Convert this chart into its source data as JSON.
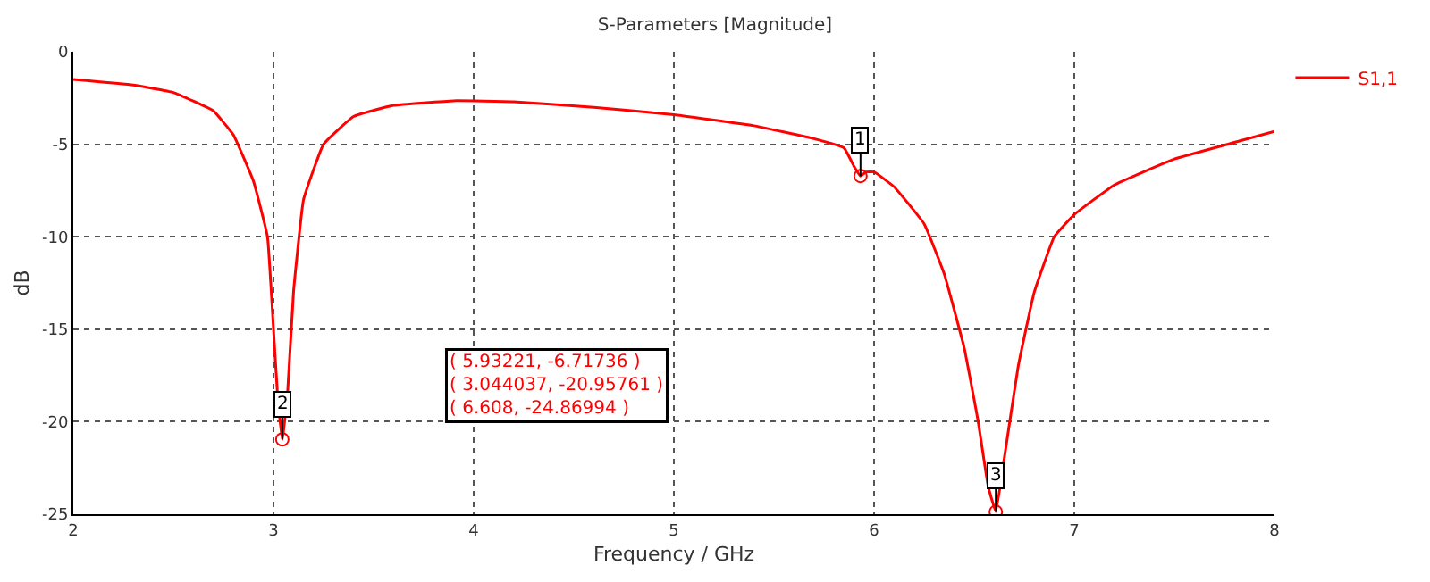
{
  "chart_data": {
    "type": "line",
    "title": "S-Parameters [Magnitude]",
    "xlabel": "Frequency / GHz",
    "ylabel": "dB",
    "xlim": [
      2,
      8
    ],
    "xticks": [
      2,
      3,
      4,
      5,
      6,
      7,
      8
    ],
    "ylim": [
      -25,
      0
    ],
    "yticks": [
      0,
      -5,
      -10,
      -15,
      -20,
      -25
    ],
    "grid": true,
    "legend": "top right",
    "series": [
      {
        "name": "S1,1",
        "color": "#ff0000",
        "x": [
          2,
          2.3,
          2.5,
          2.7,
          2.8,
          2.9,
          2.97,
          3.0,
          3.02,
          3.044037,
          3.07,
          3.1,
          3.15,
          3.25,
          3.4,
          3.6,
          3.9,
          4.2,
          4.6,
          5.0,
          5.4,
          5.7,
          5.85,
          5.9,
          5.93221,
          5.96,
          6.0,
          6.1,
          6.25,
          6.35,
          6.45,
          6.52,
          6.57,
          6.608,
          6.65,
          6.72,
          6.8,
          6.9,
          7.0,
          7.2,
          7.5,
          7.8,
          8.0
        ],
        "values": [
          -1.5,
          -1.8,
          -2.2,
          -3.2,
          -4.5,
          -7,
          -10,
          -15,
          -18.5,
          -20.95761,
          -18.5,
          -13,
          -8,
          -5,
          -3.5,
          -2.9,
          -2.65,
          -2.7,
          -3.0,
          -3.4,
          -4.0,
          -4.7,
          -5.2,
          -6.2,
          -6.71736,
          -6.5,
          -6.5,
          -7.3,
          -9.3,
          -12,
          -16,
          -20,
          -23.5,
          -24.86994,
          -22,
          -17,
          -13,
          -10,
          -8.8,
          -7.2,
          -5.8,
          -4.9,
          -4.3
        ]
      },
      {
        "type": "scatter",
        "marker": "circle",
        "color": "#ff0000",
        "x": [
          5.93221,
          3.044037,
          6.608
        ],
        "values": [
          -6.71736,
          -20.95761,
          -24.86994
        ]
      }
    ],
    "annotations": [
      {
        "text": "1",
        "x": 5.93221,
        "y": -6.71736
      },
      {
        "text": "2",
        "x": 3.044037,
        "y": -20.95761
      },
      {
        "text": "3",
        "x": 6.608,
        "y": -24.86994
      },
      "( 5.93221, -6.71736 )",
      "( 3.044037, -20.95761 )",
      "( 6.608, -24.86994 )"
    ]
  }
}
